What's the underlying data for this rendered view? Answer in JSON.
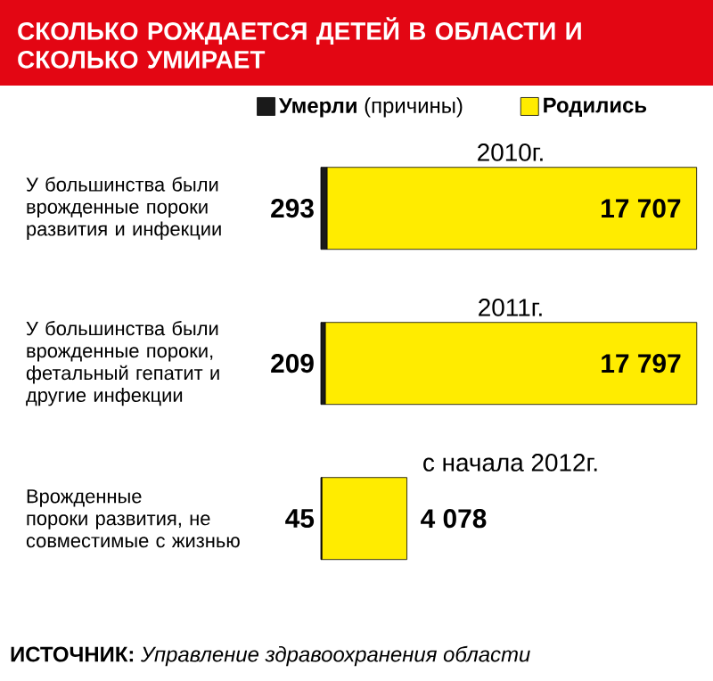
{
  "chart_data": {
    "type": "bar",
    "title": "СКОЛЬКО РОЖДАЕТСЯ ДЕТЕЙ В ОБЛАСТИ И СКОЛЬКО УМИРАЕТ",
    "orientation": "horizontal",
    "stacked": true,
    "legend": "top",
    "categories": [
      "У большинства были врожденные пороки развития и инфекции",
      "У большинства были врожденные пороки, фетальный гепатит и другие инфекции",
      "Врожденные пороки развития, не совместимые с жизнью"
    ],
    "series": [
      {
        "name": "**Умерли** (причины)",
        "color": "#1a1a1a",
        "values": [
          293,
          209,
          45
        ],
        "value_labels": [
          "293",
          "209",
          "45"
        ]
      },
      {
        "name": "**Родились**",
        "color": "#ffec00",
        "values": [
          17707,
          17797,
          4078
        ],
        "value_labels": [
          "17 707",
          "17 797",
          "4 078"
        ]
      }
    ],
    "annotations": [
      "2010г.",
      "2011г.",
      "с начала 2012г.",
      "**ИСТОЧНИК:** *Управление здравоохранения области*"
    ]
  }
}
